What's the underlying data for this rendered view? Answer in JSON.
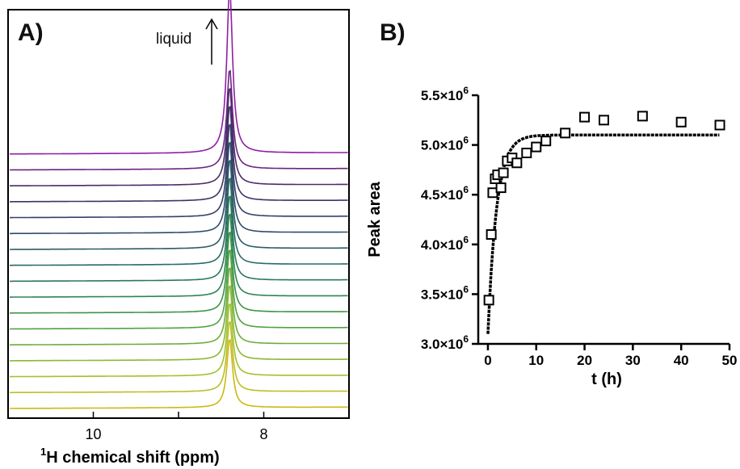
{
  "chart_data": [
    {
      "panel_label": "A)",
      "type": "line",
      "xlabel_sup": "1",
      "xlabel": "H chemical shift (ppm)",
      "xlim": [
        11.0,
        7.0
      ],
      "x_ticks": [
        10,
        8
      ],
      "x_tick_labels": [
        "10",
        "8"
      ],
      "annotation": "liquid",
      "n_spectra": 17,
      "peak_position_ppm": 8.4,
      "grid": false,
      "colors": [
        "#cdb813",
        "#b9c024",
        "#a2c12f",
        "#8ab936",
        "#6fac3c",
        "#53a142",
        "#3c9447",
        "#2d8650",
        "#2a785b",
        "#2b6a63",
        "#2c5b68",
        "#2f4c6a",
        "#34406a",
        "#3b3466",
        "#4a2c6a",
        "#6b2580",
        "#8e1fa6"
      ]
    },
    {
      "panel_label": "B)",
      "type": "scatter",
      "xlabel": "t (h)",
      "ylabel": "Peak area",
      "xlim": [
        -2,
        50
      ],
      "ylim": [
        3000000.0,
        5500000.0
      ],
      "x_ticks": [
        0,
        10,
        20,
        30,
        40,
        50
      ],
      "x_tick_labels": [
        "0",
        "10",
        "20",
        "30",
        "40",
        "50"
      ],
      "y_ticks": [
        3000000.0,
        3500000.0,
        4000000.0,
        4500000.0,
        5000000.0,
        5500000.0
      ],
      "y_tick_labels": [
        {
          "mantissa": "3.0×10",
          "exp": "6"
        },
        {
          "mantissa": "3.5×10",
          "exp": "6"
        },
        {
          "mantissa": "4.0×10",
          "exp": "6"
        },
        {
          "mantissa": "4.5×10",
          "exp": "6"
        },
        {
          "mantissa": "5.0×10",
          "exp": "6"
        },
        {
          "mantissa": "5.5×10",
          "exp": "6"
        }
      ],
      "grid": false,
      "points": [
        {
          "x": 0.2,
          "y": 3440000.0
        },
        {
          "x": 0.7,
          "y": 4100000.0
        },
        {
          "x": 1.0,
          "y": 4520000.0
        },
        {
          "x": 1.5,
          "y": 4660000.0
        },
        {
          "x": 2.0,
          "y": 4700000.0
        },
        {
          "x": 2.7,
          "y": 4570000.0
        },
        {
          "x": 3.2,
          "y": 4720000.0
        },
        {
          "x": 4.0,
          "y": 4840000.0
        },
        {
          "x": 5.0,
          "y": 4870000.0
        },
        {
          "x": 6.0,
          "y": 4820000.0
        },
        {
          "x": 8.0,
          "y": 4920000.0
        },
        {
          "x": 10.0,
          "y": 4980000.0
        },
        {
          "x": 12.0,
          "y": 5040000.0
        },
        {
          "x": 16.0,
          "y": 5120000.0
        },
        {
          "x": 20.0,
          "y": 5280000.0
        },
        {
          "x": 24.0,
          "y": 5250000.0
        },
        {
          "x": 32.0,
          "y": 5290000.0
        },
        {
          "x": 40.0,
          "y": 5230000.0
        },
        {
          "x": 48.0,
          "y": 5200000.0
        }
      ],
      "fit": {
        "y0": 3100000.0,
        "plateau": 5100000.0,
        "k": 0.55,
        "x_range": [
          0,
          48
        ]
      }
    }
  ]
}
